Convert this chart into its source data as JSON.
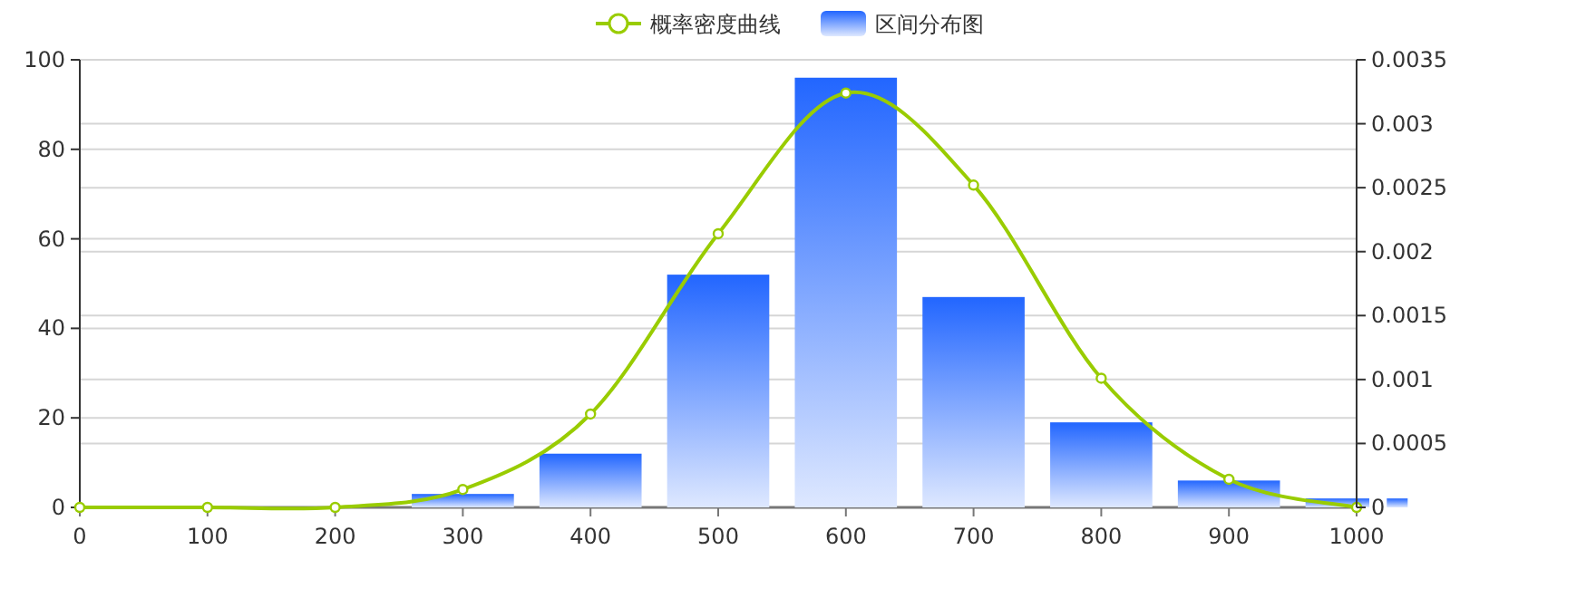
{
  "chart_data": {
    "type": "bar",
    "x": [
      300,
      400,
      500,
      600,
      700,
      800,
      900,
      1000
    ],
    "series": [
      {
        "name": "概率密度曲线",
        "type": "line",
        "axis": "y2",
        "color": "#99cc00",
        "x": [
          0,
          100,
          200,
          300,
          400,
          500,
          600,
          700,
          800,
          900,
          1000
        ],
        "values": [
          0,
          0,
          0,
          0.00014,
          0.00073,
          0.00214,
          0.00324,
          0.00252,
          0.00101,
          0.00022,
          0
        ]
      },
      {
        "name": "区间分布图",
        "color": "#2266ff",
        "values": [
          3,
          12,
          52,
          96,
          47,
          19,
          6,
          2
        ]
      }
    ],
    "xlim": [
      0,
      1000
    ],
    "xticks": [
      0,
      100,
      200,
      300,
      400,
      500,
      600,
      700,
      800,
      900,
      1000
    ],
    "ylim": [
      0,
      100
    ],
    "yticks": [
      0,
      20,
      40,
      60,
      80,
      100
    ],
    "y2lim": [
      0,
      0.0035
    ],
    "y2ticks": [
      0,
      0.0005,
      0.001,
      0.0015,
      0.002,
      0.0025,
      0.003,
      0.0035
    ],
    "grid": true,
    "legend": "top",
    "marker": "circle"
  }
}
